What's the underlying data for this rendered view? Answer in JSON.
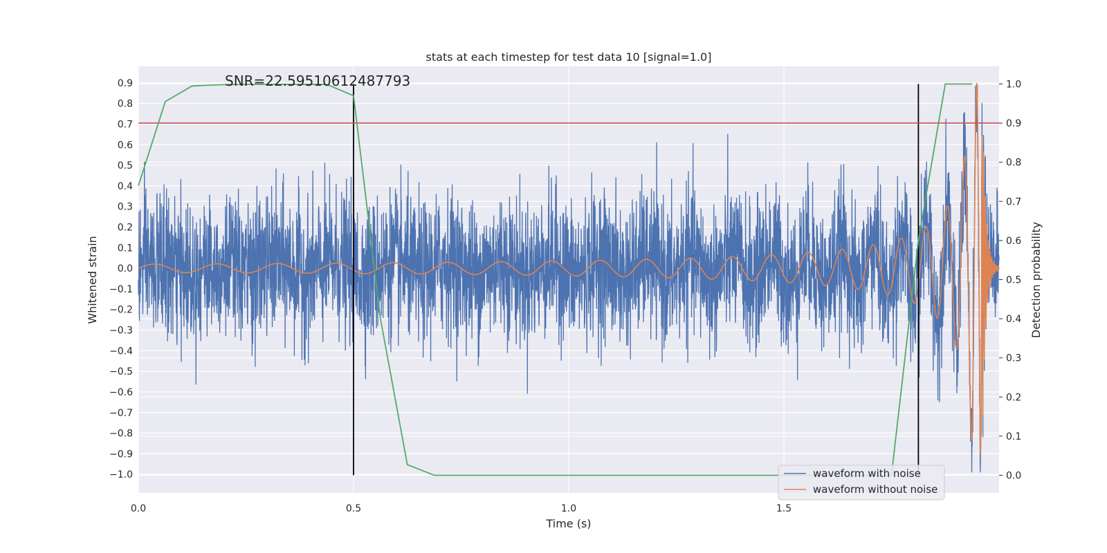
{
  "chart_data": {
    "type": "line",
    "title": "stats at each timestep for test data 10 [signal=1.0]",
    "annotation": "SNR=22.59510612487793",
    "xlabel": "Time (s)",
    "ylabel_left": "Whitened strain",
    "ylabel_right": "Detection probability",
    "xlim": [
      0.0,
      2.0
    ],
    "ylim_left": [
      -1.09,
      0.98
    ],
    "ylim_right": [
      -0.045,
      1.045
    ],
    "x_ticks": [
      "0.0",
      "0.5",
      "1.0",
      "1.5"
    ],
    "y_ticks_left": [
      "−1.0",
      "−0.9",
      "−0.8",
      "−0.7",
      "−0.6",
      "−0.5",
      "−0.4",
      "−0.3",
      "−0.2",
      "−0.1",
      "0.0",
      "0.1",
      "0.2",
      "0.3",
      "0.4",
      "0.5",
      "0.6",
      "0.7",
      "0.8",
      "0.9"
    ],
    "y_ticks_right": [
      "0.0",
      "0.1",
      "0.2",
      "0.3",
      "0.4",
      "0.5",
      "0.6",
      "0.7",
      "0.8",
      "0.9",
      "1.0"
    ],
    "grid": true,
    "legend_position": "lower-right",
    "colors": {
      "noisy": "#4c72b0",
      "clean": "#dd8452",
      "probability": "#55a868",
      "threshold": "#c44e52",
      "markers": "#000000",
      "plot_bg": "#eaeaf2",
      "grid": "#ffffff"
    },
    "series": [
      {
        "name": "waveform with noise",
        "axis": "left",
        "kind": "noise",
        "amplitude_std": 0.17,
        "x_range": [
          0.0,
          2.0
        ]
      },
      {
        "name": "waveform without noise",
        "axis": "left",
        "kind": "chirp",
        "amplitude_start": 0.02,
        "amplitude_peak": 0.9,
        "merger_time": 1.96,
        "x_range": [
          0.0,
          2.0
        ]
      },
      {
        "axis": "right",
        "kind": "probability",
        "x": [
          0.0,
          0.0625,
          0.125,
          0.1875,
          0.25,
          0.3125,
          0.375,
          0.4375,
          0.5,
          0.5625,
          0.625,
          0.6875,
          0.75,
          0.8125,
          0.875,
          0.9375,
          1.0,
          1.0625,
          1.125,
          1.1875,
          1.25,
          1.3125,
          1.375,
          1.4375,
          1.5,
          1.5625,
          1.625,
          1.6875,
          1.75,
          1.8125,
          1.875,
          1.9375
        ],
        "y": [
          0.74,
          0.955,
          0.995,
          0.998,
          0.999,
          0.999,
          0.999,
          0.999,
          0.97,
          0.4,
          0.027,
          0.0,
          0.0,
          0.0,
          0.0,
          0.0,
          0.0,
          0.0,
          0.0,
          0.0,
          0.0,
          0.0,
          0.0,
          0.0,
          0.0,
          0.0,
          0.0,
          0.0,
          0.0,
          0.6,
          1.0,
          1.0
        ]
      }
    ],
    "threshold_line": {
      "axis": "right",
      "value": 0.9
    },
    "vertical_markers": [
      0.5,
      1.8125
    ],
    "legend": [
      "waveform with noise",
      "waveform without noise"
    ]
  }
}
